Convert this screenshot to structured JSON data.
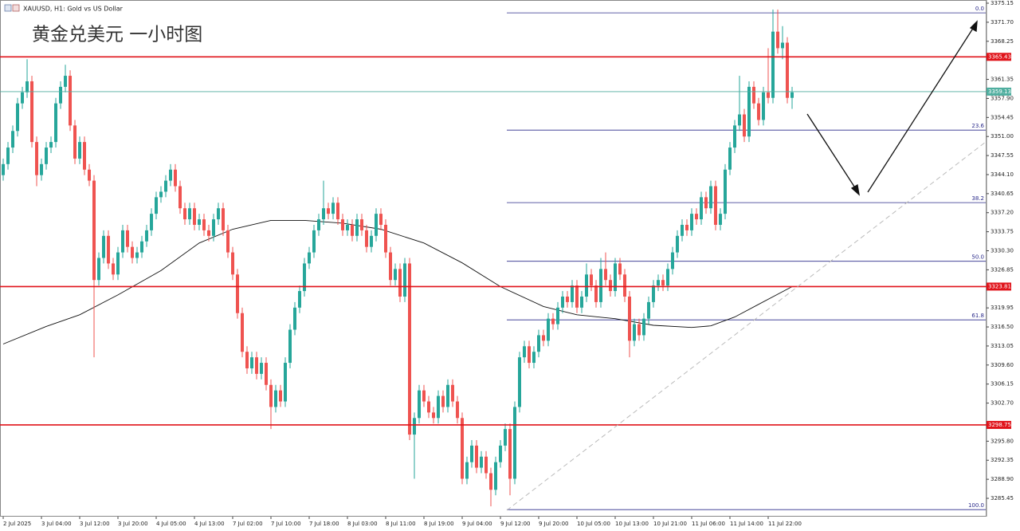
{
  "chart_data": {
    "type": "candlestick",
    "symbol": "XAUUSD, H1: Gold vs US Dollar",
    "title": "黄金兑美元 一小时图",
    "bull_color": "#26a69a",
    "bear_color": "#ef5350",
    "ylim": [
      3282.13,
      3375.73
    ],
    "xlim": [
      -0.67,
      205.67
    ],
    "yticks": [
      3375.15,
      {
        "value": 3371.7,
        "label": "3371.70"
      },
      3368.25,
      3361.35,
      {
        "value": 3357.9,
        "label": "3357.90"
      },
      3354.45,
      {
        "value": 3351.0,
        "label": "3351.00"
      },
      3347.55,
      {
        "value": 3344.1,
        "label": "3344.10"
      },
      3340.65,
      {
        "value": 3337.2,
        "label": "3337.20"
      },
      3333.75,
      {
        "value": 3330.3,
        "label": "3330.30"
      },
      3326.85,
      3319.95,
      {
        "value": 3316.5,
        "label": "3316.50"
      },
      3313.05,
      {
        "value": 3309.6,
        "label": "3309.60"
      },
      3306.15,
      {
        "value": 3302.7,
        "label": "3302.70"
      },
      {
        "value": 3295.8,
        "label": "3295.80"
      },
      3292.35,
      {
        "value": 3288.9,
        "label": "3288.90"
      },
      3285.45
    ],
    "xticks": [
      {
        "value": 0,
        "label": "2 Jul 2025"
      },
      {
        "value": 8,
        "label": "3 Jul 04:00"
      },
      {
        "value": 16,
        "label": "3 Jul 12:00"
      },
      {
        "value": 24,
        "label": "3 Jul 20:00"
      },
      {
        "value": 32,
        "label": "4 Jul 05:00"
      },
      {
        "value": 40,
        "label": "4 Jul 13:00"
      },
      {
        "value": 48,
        "label": "7 Jul 02:00"
      },
      {
        "value": 56,
        "label": "7 Jul 10:00"
      },
      {
        "value": 64,
        "label": "7 Jul 18:00"
      },
      {
        "value": 72,
        "label": "8 Jul 03:00"
      },
      {
        "value": 80,
        "label": "8 Jul 11:00"
      },
      {
        "value": 88,
        "label": "8 Jul 19:00"
      },
      {
        "value": 96,
        "label": "9 Jul 04:00"
      },
      {
        "value": 104,
        "label": "9 Jul 12:00"
      },
      {
        "value": 112,
        "label": "9 Jul 20:00"
      },
      {
        "value": 120,
        "label": "10 Jul 05:00"
      },
      {
        "value": 128,
        "label": "10 Jul 13:00"
      },
      {
        "value": 136,
        "label": "10 Jul 21:00"
      },
      {
        "value": 144,
        "label": "11 Jul 06:00"
      },
      {
        "value": 152,
        "label": "11 Jul 14:00"
      },
      {
        "value": 160,
        "label": "11 Jul 22:00"
      }
    ],
    "candles": [
      [
        3344,
        3347,
        3343,
        3346
      ],
      [
        3346,
        3350,
        3345,
        3349
      ],
      [
        3349,
        3353,
        3348,
        3352
      ],
      [
        3352,
        3358,
        3351,
        3357
      ],
      [
        3357,
        3360,
        3356,
        3359
      ],
      [
        3359,
        3365,
        3358,
        3361
      ],
      [
        3361,
        3362,
        3349,
        3350
      ],
      [
        3350,
        3351,
        3342,
        3344
      ],
      [
        3344,
        3347,
        3343,
        3346
      ],
      [
        3346,
        3350,
        3345,
        3349
      ],
      [
        3349,
        3351,
        3348,
        3350
      ],
      [
        3350,
        3358,
        3349,
        3357
      ],
      [
        3357,
        3361,
        3356,
        3360
      ],
      [
        3360,
        3364,
        3359,
        3362
      ],
      [
        3362,
        3363,
        3352,
        3353
      ],
      [
        3353,
        3354,
        3346,
        3347
      ],
      [
        3347,
        3351,
        3346,
        3350
      ],
      [
        3350,
        3351,
        3344,
        3345
      ],
      [
        3345,
        3346,
        3342,
        3343
      ],
      [
        3343,
        3344,
        3311,
        3325
      ],
      [
        3325,
        3330,
        3324,
        3329
      ],
      [
        3329,
        3334,
        3328,
        3333
      ],
      [
        3333,
        3334,
        3327,
        3328
      ],
      [
        3328,
        3329,
        3325,
        3326
      ],
      [
        3326,
        3331,
        3325,
        3330
      ],
      [
        3330,
        3335,
        3329,
        3334
      ],
      [
        3334,
        3335,
        3330,
        3331
      ],
      [
        3331,
        3332,
        3328,
        3329
      ],
      [
        3329,
        3331,
        3328,
        3330
      ],
      [
        3330,
        3333,
        3329,
        3332
      ],
      [
        3332,
        3335,
        3331,
        3334
      ],
      [
        3334,
        3338,
        3333,
        3337
      ],
      [
        3337,
        3341,
        3336,
        3340
      ],
      [
        3340,
        3342,
        3339,
        3341
      ],
      [
        3341,
        3344,
        3340,
        3343
      ],
      [
        3343,
        3346,
        3342,
        3345
      ],
      [
        3345,
        3346,
        3341,
        3342
      ],
      [
        3342,
        3343,
        3337,
        3338
      ],
      [
        3338,
        3339,
        3335,
        3336
      ],
      [
        3336,
        3339,
        3335,
        3338
      ],
      [
        3338,
        3339,
        3334,
        3335
      ],
      [
        3335,
        3337,
        3334,
        3336
      ],
      [
        3336,
        3337,
        3333,
        3334
      ],
      [
        3334,
        3335,
        3332,
        3333
      ],
      [
        3333,
        3337,
        3332,
        3336
      ],
      [
        3336,
        3339,
        3335,
        3338
      ],
      [
        3338,
        3339,
        3333,
        3334
      ],
      [
        3334,
        3335,
        3329,
        3330
      ],
      [
        3330,
        3331,
        3325,
        3326
      ],
      [
        3326,
        3327,
        3318,
        3319
      ],
      [
        3319,
        3320,
        3311,
        3312
      ],
      [
        3312,
        3313,
        3308,
        3309
      ],
      [
        3309,
        3312,
        3308,
        3311
      ],
      [
        3311,
        3312,
        3307,
        3308
      ],
      [
        3308,
        3311,
        3307,
        3310
      ],
      [
        3310,
        3311,
        3305,
        3306
      ],
      [
        3306,
        3307,
        3298,
        3302
      ],
      [
        3302,
        3306,
        3301,
        3305
      ],
      [
        3305,
        3306,
        3302,
        3303
      ],
      [
        3303,
        3311,
        3302,
        3310
      ],
      [
        3310,
        3317,
        3309,
        3316
      ],
      [
        3316,
        3321,
        3315,
        3320
      ],
      [
        3320,
        3324,
        3319,
        3323
      ],
      [
        3323,
        3329,
        3322,
        3328
      ],
      [
        3328,
        3331,
        3327,
        3330
      ],
      [
        3330,
        3335,
        3329,
        3334
      ],
      [
        3334,
        3337,
        3333,
        3336
      ],
      [
        3336,
        3343,
        3335,
        3338
      ],
      [
        3338,
        3339,
        3336,
        3337
      ],
      [
        3337,
        3340,
        3336,
        3339
      ],
      [
        3339,
        3340,
        3335,
        3336
      ],
      [
        3336,
        3337,
        3333,
        3334
      ],
      [
        3334,
        3336,
        3333,
        3335
      ],
      [
        3335,
        3336,
        3332,
        3333
      ],
      [
        3333,
        3337,
        3332,
        3336
      ],
      [
        3336,
        3337,
        3333,
        3334
      ],
      [
        3334,
        3335,
        3330,
        3331
      ],
      [
        3331,
        3334,
        3330,
        3333
      ],
      [
        3333,
        3338,
        3332,
        3337
      ],
      [
        3337,
        3338,
        3334,
        3335
      ],
      [
        3335,
        3336,
        3329,
        3330
      ],
      [
        3330,
        3331,
        3324,
        3325
      ],
      [
        3325,
        3328,
        3324,
        3327
      ],
      [
        3327,
        3328,
        3321,
        3322
      ],
      [
        3322,
        3329,
        3321,
        3328
      ],
      [
        3328,
        3329,
        3296,
        3297
      ],
      [
        3297,
        3301,
        3289,
        3300
      ],
      [
        3300,
        3306,
        3299,
        3305
      ],
      [
        3305,
        3306,
        3302,
        3303
      ],
      [
        3303,
        3304,
        3300,
        3301
      ],
      [
        3301,
        3302,
        3299,
        3300
      ],
      [
        3300,
        3305,
        3299,
        3304
      ],
      [
        3304,
        3305,
        3301,
        3302
      ],
      [
        3302,
        3307,
        3301,
        3306
      ],
      [
        3306,
        3307,
        3302,
        3303
      ],
      [
        3303,
        3304,
        3299,
        3300
      ],
      [
        3300,
        3301,
        3288,
        3289
      ],
      [
        3289,
        3293,
        3288,
        3292
      ],
      [
        3292,
        3296,
        3291,
        3295
      ],
      [
        3295,
        3296,
        3290,
        3291
      ],
      [
        3291,
        3294,
        3290,
        3293
      ],
      [
        3293,
        3294,
        3289,
        3290
      ],
      [
        3290,
        3291,
        3284,
        3287
      ],
      [
        3287,
        3293,
        3286,
        3292
      ],
      [
        3292,
        3296,
        3291,
        3295
      ],
      [
        3295,
        3299,
        3294,
        3298
      ],
      [
        3298,
        3299,
        3286,
        3289
      ],
      [
        3289,
        3303,
        3288,
        3302
      ],
      [
        3302,
        3312,
        3301,
        3311
      ],
      [
        3311,
        3314,
        3310,
        3313
      ],
      [
        3313,
        3314,
        3309,
        3310
      ],
      [
        3310,
        3313,
        3309,
        3312
      ],
      [
        3312,
        3316,
        3311,
        3315
      ],
      [
        3315,
        3316,
        3313,
        3314
      ],
      [
        3314,
        3319,
        3313,
        3318
      ],
      [
        3318,
        3319,
        3316,
        3317
      ],
      [
        3317,
        3321,
        3316,
        3320
      ],
      [
        3320,
        3323,
        3319,
        3322
      ],
      [
        3322,
        3323,
        3320,
        3321
      ],
      [
        3321,
        3325,
        3320,
        3324
      ],
      [
        3324,
        3325,
        3319,
        3320
      ],
      [
        3320,
        3323,
        3319,
        3322
      ],
      [
        3322,
        3328,
        3321,
        3326
      ],
      [
        3326,
        3327,
        3323,
        3324
      ],
      [
        3324,
        3325,
        3320,
        3321
      ],
      [
        3321,
        3329,
        3320,
        3327
      ],
      [
        3327,
        3330,
        3324,
        3325
      ],
      [
        3325,
        3326,
        3322,
        3323
      ],
      [
        3323,
        3329,
        3322,
        3328
      ],
      [
        3328,
        3329,
        3325,
        3326
      ],
      [
        3326,
        3327,
        3321,
        3322
      ],
      [
        3322,
        3323,
        3311,
        3314
      ],
      [
        3314,
        3318,
        3313,
        3317
      ],
      [
        3317,
        3318,
        3314,
        3315
      ],
      [
        3315,
        3319,
        3314,
        3318
      ],
      [
        3318,
        3322,
        3317,
        3321
      ],
      [
        3321,
        3325,
        3320,
        3324
      ],
      [
        3324,
        3326,
        3323,
        3325
      ],
      [
        3325,
        3326,
        3323,
        3324
      ],
      [
        3324,
        3328,
        3323,
        3327
      ],
      [
        3327,
        3331,
        3326,
        3330
      ],
      [
        3330,
        3334,
        3329,
        3333
      ],
      [
        3333,
        3336,
        3332,
        3335
      ],
      [
        3335,
        3336,
        3333,
        3334
      ],
      [
        3334,
        3338,
        3333,
        3337
      ],
      [
        3337,
        3338,
        3335,
        3336
      ],
      [
        3336,
        3341,
        3335,
        3340
      ],
      [
        3340,
        3341,
        3337,
        3338
      ],
      [
        3338,
        3343,
        3337,
        3342
      ],
      [
        3342,
        3343,
        3334,
        3335
      ],
      [
        3335,
        3338,
        3334,
        3337
      ],
      [
        3337,
        3346,
        3336,
        3345
      ],
      [
        3345,
        3350,
        3344,
        3349
      ],
      [
        3349,
        3354,
        3348,
        3353
      ],
      [
        3353,
        3362,
        3352,
        3355
      ],
      [
        3355,
        3356,
        3350,
        3351
      ],
      [
        3351,
        3361,
        3350,
        3360
      ],
      [
        3360,
        3361,
        3356,
        3357
      ],
      [
        3357,
        3358,
        3353,
        3354
      ],
      [
        3354,
        3360,
        3353,
        3359
      ],
      [
        3359,
        3367,
        3357,
        3358
      ],
      [
        3358,
        3374,
        3357,
        3370
      ],
      [
        3370,
        3374,
        3366,
        3367
      ],
      [
        3367,
        3371,
        3365,
        3368
      ],
      [
        3368,
        3369,
        3357,
        3358
      ],
      [
        3358,
        3360,
        3356,
        3359
      ]
    ],
    "moving_average": {
      "color": "#111111",
      "x": [
        0,
        9,
        16,
        24,
        33,
        41,
        48,
        56,
        63,
        71,
        79,
        88,
        96,
        104,
        113,
        120,
        128,
        136,
        144,
        148,
        153,
        158,
        165
      ],
      "values": [
        3313.4,
        3316.6,
        3318.7,
        3322.3,
        3326.7,
        3331.7,
        3334.2,
        3335.8,
        3335.8,
        3335.3,
        3334.2,
        3331.7,
        3328.1,
        3323.8,
        3320.2,
        3318.7,
        3318.0,
        3316.8,
        3316.4,
        3316.7,
        3318.3,
        3320.6,
        3323.8
      ]
    },
    "levels": [
      {
        "value": 3365.43,
        "color": "#e0131a"
      },
      {
        "value": 3323.81,
        "color": "#e0131a"
      },
      {
        "value": 3298.75,
        "color": "#e0131a"
      }
    ],
    "current_price": {
      "value": 3359.13,
      "color": "#4fae9f"
    },
    "fibonacci": {
      "high": 3373.4,
      "low": 3283.4,
      "color": "#2a2a8a",
      "levels": [
        {
          "value": 0,
          "label": "0.0"
        },
        23.6,
        38.2,
        {
          "value": 50,
          "label": "50.0"
        },
        61.8,
        {
          "value": 100,
          "label": "100.0"
        }
      ]
    }
  }
}
